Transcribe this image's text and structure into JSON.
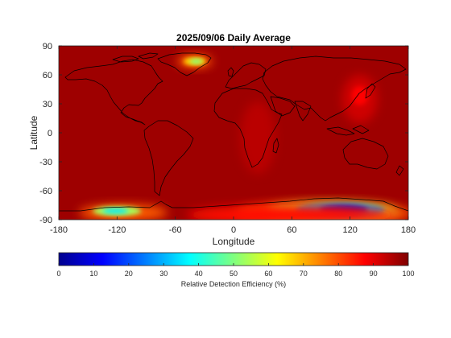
{
  "chart_data": {
    "type": "heatmap",
    "title": "2025/09/06 Daily Average",
    "xlabel": "Longitude",
    "ylabel": "Latitude",
    "xlim": [
      -180,
      180
    ],
    "ylim": [
      -90,
      90
    ],
    "x_ticks": [
      -180,
      -120,
      -60,
      0,
      60,
      120,
      180
    ],
    "y_ticks": [
      90,
      60,
      30,
      0,
      -30,
      -60,
      -90
    ],
    "x_tick_labels": [
      "-180",
      "-120",
      "-60",
      "0",
      "60",
      "120",
      "180"
    ],
    "y_tick_labels": [
      "90",
      "60",
      "30",
      "0",
      "-30",
      "-60",
      "-90"
    ],
    "colormap": "jet",
    "value_range": [
      0,
      100
    ],
    "background_value": 97,
    "regions": [
      {
        "lon": -40,
        "lat": 74,
        "value": 50
      },
      {
        "lon": -120,
        "lat": -81,
        "value": 35
      },
      {
        "lon": 110,
        "lat": -80,
        "value": 8
      },
      {
        "lon": 130,
        "lat": 35,
        "value": 85
      },
      {
        "lon": 25,
        "lat": -5,
        "value": 88
      },
      {
        "lon": 60,
        "lat": -80,
        "value": 55
      }
    ],
    "colorbar": {
      "label": "Relative Detection Efficiency (%)",
      "ticks": [
        0,
        10,
        20,
        30,
        40,
        50,
        60,
        70,
        80,
        90,
        100
      ],
      "tick_labels": [
        "0",
        "10",
        "20",
        "30",
        "40",
        "50",
        "60",
        "70",
        "80",
        "90",
        "100"
      ],
      "orientation": "horizontal",
      "placement": "bottom"
    }
  }
}
